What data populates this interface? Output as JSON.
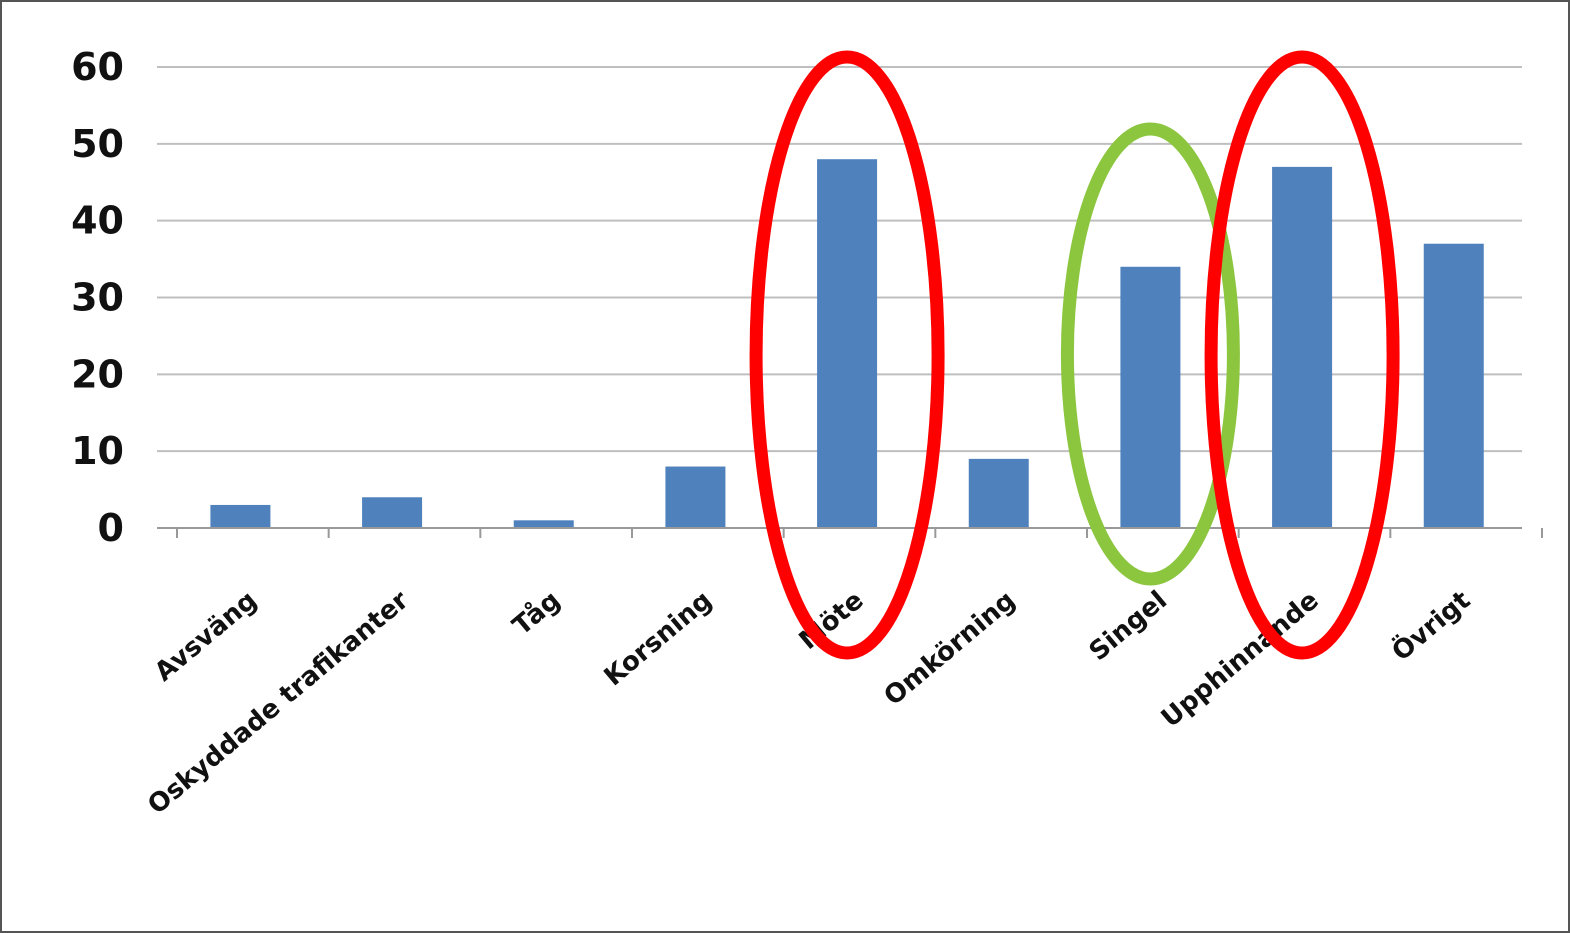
{
  "chart_data": {
    "type": "bar",
    "title": "",
    "xlabel": "",
    "ylabel": "",
    "categories": [
      "Avsväng",
      "Oskyddade trafikanter",
      "Tåg",
      "Korsning",
      "Möte",
      "Omkörning",
      "Singel",
      "Upphinnande",
      "Övrigt"
    ],
    "values": [
      3,
      4,
      1,
      8,
      48,
      9,
      34,
      47,
      37
    ],
    "ylim": [
      0,
      60
    ],
    "yticks": [
      "0",
      "10",
      "20",
      "30",
      "40",
      "50",
      "60"
    ],
    "grid": true,
    "legend": "none",
    "colors": {
      "bar": "#4f81bd",
      "grid": "#bfbfbf",
      "highlight_red": "#ff0000",
      "highlight_green": "#8cc63f"
    },
    "annotations": [
      {
        "shape": "ellipse",
        "color": "#ff0000",
        "category": "Möte"
      },
      {
        "shape": "ellipse",
        "color": "#8cc63f",
        "category": "Singel"
      },
      {
        "shape": "ellipse",
        "color": "#ff0000",
        "category": "Upphinnande"
      }
    ]
  }
}
